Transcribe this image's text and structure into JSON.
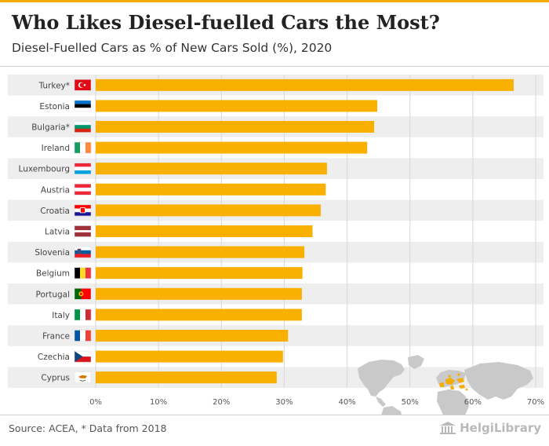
{
  "colors": {
    "bar": "#f9b000",
    "band": "#eeeeee",
    "accent": "#f2ad00",
    "map": "#c8c8c8",
    "map_highlight": "#f2ad00"
  },
  "header": {
    "title": "Who Likes Diesel-fuelled Cars the Most?",
    "subtitle": "Diesel-Fuelled Cars as % of New Cars Sold (%), 2020"
  },
  "footer": {
    "source": "Source: ACEA, * Data from 2018",
    "brand": "HelgiLibrary",
    "brand_icon": "library-building-icon"
  },
  "chart_data": {
    "type": "bar",
    "orientation": "horizontal",
    "categories": [
      "Turkey*",
      "Estonia",
      "Bulgaria*",
      "Ireland",
      "Luxembourg",
      "Austria",
      "Croatia",
      "Latvia",
      "Slovenia",
      "Belgium",
      "Portugal",
      "Italy",
      "France",
      "Czechia",
      "Cyprus"
    ],
    "values": [
      66.5,
      44.8,
      44.3,
      43.2,
      36.8,
      36.6,
      35.8,
      34.5,
      33.2,
      32.9,
      32.8,
      32.8,
      30.6,
      29.8,
      28.8
    ],
    "flags": [
      "flag-turkey-icon",
      "flag-estonia-icon",
      "flag-bulgaria-icon",
      "flag-ireland-icon",
      "flag-luxembourg-icon",
      "flag-austria-icon",
      "flag-croatia-icon",
      "flag-latvia-icon",
      "flag-slovenia-icon",
      "flag-belgium-icon",
      "flag-portugal-icon",
      "flag-italy-icon",
      "flag-france-icon",
      "flag-czechia-icon",
      "flag-cyprus-icon"
    ],
    "xlim": [
      0,
      70
    ],
    "xticks": [
      "0%",
      "10%",
      "20%",
      "30%",
      "40%",
      "50%",
      "60%",
      "70%"
    ],
    "grid": "vertical",
    "legend": "none",
    "inset": "world-map-icon"
  }
}
